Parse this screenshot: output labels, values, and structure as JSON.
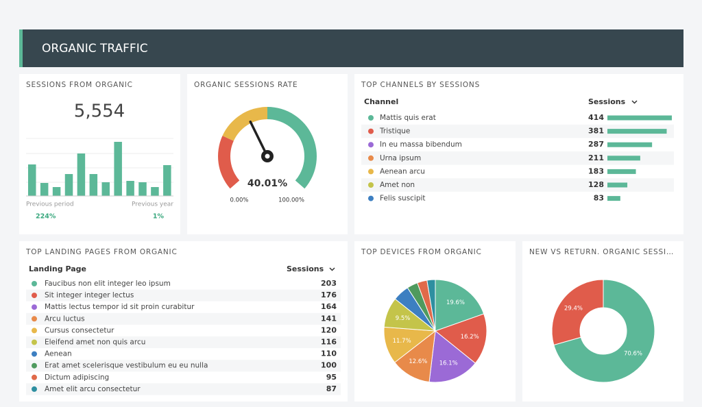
{
  "header": {
    "title": "ORGANIC TRAFFIC"
  },
  "sessions": {
    "title": "SESSIONS FROM ORGANIC",
    "total": "5,554",
    "type": "bar",
    "color": "#5cb898",
    "values": [
      46,
      19,
      13,
      32,
      62,
      32,
      20,
      79,
      22,
      20,
      13,
      45
    ],
    "left": {
      "label": "Previous period",
      "change": "224%"
    },
    "right": {
      "label": "Previous year",
      "change": "1%"
    }
  },
  "gauge": {
    "title": "ORGANIC SESSIONS RATE",
    "type": "gauge",
    "value": 40.01,
    "value_label": "40.01%",
    "min": {
      "value": 0,
      "label": "0.00%"
    },
    "max": {
      "value": 100,
      "label": "100.00%"
    },
    "bands": [
      {
        "from": 0,
        "to": 25,
        "color": "#e05c4b"
      },
      {
        "from": 25,
        "to": 50,
        "color": "#e8b84a"
      },
      {
        "from": 50,
        "to": 100,
        "color": "#5cb898"
      }
    ]
  },
  "channels": {
    "title": "TOP CHANNELS BY SESSIONS",
    "columns": [
      "Channel",
      "Sessions"
    ],
    "bar_color": "#5cb898",
    "rows": [
      {
        "name": "Mattis quis erat",
        "color": "#5cb898",
        "value": 414
      },
      {
        "name": "Tristique",
        "color": "#e05c4b",
        "value": 381
      },
      {
        "name": "In eu massa bibendum",
        "color": "#9b6ad6",
        "value": 287
      },
      {
        "name": "Urna ipsum",
        "color": "#e88a4a",
        "value": 211
      },
      {
        "name": "Aenean arcu",
        "color": "#e8b84a",
        "value": 183
      },
      {
        "name": "Amet non",
        "color": "#c4c44a",
        "value": 128
      },
      {
        "name": "Felis suscipit",
        "color": "#3d7fc1",
        "value": 83
      }
    ]
  },
  "landing": {
    "title": "TOP LANDING PAGES FROM ORGANIC",
    "columns": [
      "Landing Page",
      "Sessions"
    ],
    "rows": [
      {
        "name": "Faucibus non elit integer leo ipsum",
        "color": "#5cb898",
        "value": 203
      },
      {
        "name": "Sit integer integer lectus",
        "color": "#e05c4b",
        "value": 176
      },
      {
        "name": "Mattis lectus tempor id sit proin curabitur",
        "color": "#9b6ad6",
        "value": 164
      },
      {
        "name": "Arcu luctus",
        "color": "#e88a4a",
        "value": 141
      },
      {
        "name": "Cursus consectetur",
        "color": "#e8b84a",
        "value": 120
      },
      {
        "name": "Eleifend amet non quis arcu",
        "color": "#c4c44a",
        "value": 116
      },
      {
        "name": "Aenean",
        "color": "#3d7fc1",
        "value": 110
      },
      {
        "name": "Erat amet scelerisque vestibulum eu eu nulla",
        "color": "#4f9a5e",
        "value": 100
      },
      {
        "name": "Dictum adipiscing",
        "color": "#e06a4a",
        "value": 95
      },
      {
        "name": "Amet elit arcu consectetur",
        "color": "#2e8fa0",
        "value": 87
      }
    ]
  },
  "devices": {
    "title": "TOP DEVICES FROM ORGANIC",
    "type": "pie",
    "values": [
      19.6,
      16.2,
      16.1,
      12.6,
      11.7,
      9.5,
      5.2,
      3.4,
      3.1,
      2.6
    ],
    "value_labels": [
      "19.6%",
      "16.2%",
      "16.1%",
      "12.6%",
      "11.7%",
      "9.5%",
      null,
      null,
      null,
      null
    ],
    "colors": [
      "#5cb898",
      "#e05c4b",
      "#9b6ad6",
      "#e88a4a",
      "#e8b84a",
      "#c4c44a",
      "#3d7fc1",
      "#4f9a5e",
      "#e06a4a",
      "#2e8fa0"
    ]
  },
  "newreturn": {
    "title": "NEW VS RETURN. ORGANIC SESSI…",
    "type": "donut",
    "values": [
      70.6,
      29.4
    ],
    "value_labels": [
      "70.6%",
      "29.4%"
    ],
    "colors": [
      "#5cb898",
      "#e05c4b"
    ]
  }
}
